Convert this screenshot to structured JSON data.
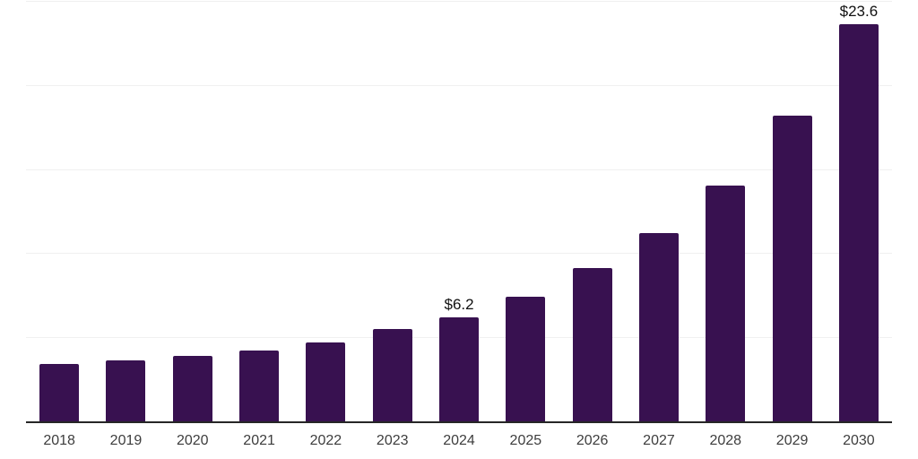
{
  "chart": {
    "background": "#ffffff",
    "bar_color": "#381150",
    "axis_color": "#262626",
    "gridline_color": "#f0f0f0",
    "tick_label_color": "#3d3d3d",
    "value_label_color": "#111111"
  },
  "chart_data": {
    "type": "bar",
    "title": "",
    "xlabel": "",
    "ylabel": "",
    "categories": [
      "2018",
      "2019",
      "2020",
      "2021",
      "2022",
      "2023",
      "2024",
      "2025",
      "2026",
      "2027",
      "2028",
      "2029",
      "2030"
    ],
    "values": [
      3.4,
      3.6,
      3.9,
      4.2,
      4.7,
      5.5,
      6.2,
      7.4,
      9.1,
      11.2,
      14.0,
      18.2,
      23.6
    ],
    "data_labels": [
      null,
      null,
      null,
      null,
      null,
      null,
      "$6.2",
      null,
      null,
      null,
      null,
      null,
      "$23.6"
    ],
    "ylim": [
      0,
      25
    ],
    "gridline_values": [
      5,
      10,
      15,
      20,
      25
    ],
    "grid": true,
    "legend": false,
    "y_axis_tick_labels_visible": false
  }
}
